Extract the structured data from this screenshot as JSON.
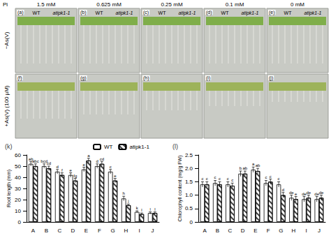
{
  "figure": {
    "header_label": "Pi",
    "columns": [
      "1.5 mM",
      "0.625 mM",
      "0.25 mM",
      "0.1 mM",
      "0 mM"
    ],
    "rows": [
      "−As(V)",
      "+As(V) (100 µM)"
    ],
    "genotypes": [
      "WT",
      "atipk1-1"
    ],
    "panels": [
      "(a)",
      "(b)",
      "(c)",
      "(d)",
      "(e)",
      "(f)",
      "(g)",
      "(h)",
      "(i)",
      "(j)"
    ]
  },
  "chart_data": [
    {
      "type": "bar",
      "title": "(k)",
      "y_label": "Root length (mm)",
      "categories": [
        "A",
        "B",
        "C",
        "D",
        "E",
        "F",
        "G",
        "H",
        "I",
        "J"
      ],
      "series": [
        {
          "name": "WT",
          "color": "#ffffff",
          "values": [
            52,
            50,
            45,
            42,
            47,
            50,
            45,
            21,
            9,
            8
          ],
          "errors": [
            2,
            2,
            2,
            2,
            2,
            2,
            2,
            2,
            1,
            1
          ],
          "letters": [
            "ab",
            "bcd",
            "d",
            "e",
            "e",
            "d",
            "c",
            "h",
            "k",
            "l"
          ]
        },
        {
          "name": "atipk1-1",
          "color": "#ffffff",
          "values": [
            50,
            48,
            42,
            37,
            55,
            52,
            37,
            15,
            7,
            8
          ],
          "errors": [
            2,
            2,
            2,
            2,
            2,
            2,
            2,
            1,
            1,
            1
          ],
          "letters": [
            "abc",
            "cd",
            "f",
            "fg",
            "a",
            "cd",
            "e",
            "j",
            "l",
            "l"
          ]
        }
      ],
      "ylim": [
        0,
        60
      ],
      "yticks": [
        0,
        10,
        20,
        30,
        40,
        50,
        60
      ],
      "legend": "top",
      "grid": false
    },
    {
      "type": "bar",
      "title": "(l)",
      "y_label": "Chlorophyll content (mg/g FW)",
      "categories": [
        "A",
        "B",
        "C",
        "D",
        "E",
        "F",
        "G",
        "H",
        "I",
        "J"
      ],
      "series": [
        {
          "name": "WT",
          "color": "#ffffff",
          "values": [
            1.4,
            1.45,
            1.4,
            1.8,
            1.95,
            1.45,
            1.4,
            0.9,
            0.85,
            0.85
          ],
          "errors": [
            0.1,
            0.1,
            0.1,
            0.1,
            0.1,
            0.1,
            0.1,
            0.1,
            0.1,
            0.1
          ],
          "letters": [
            "c",
            "c",
            "c",
            "b",
            "a",
            "c",
            "c",
            "de",
            "de",
            "de"
          ]
        },
        {
          "name": "atipk1-1",
          "color": "#ffffff",
          "values": [
            1.4,
            1.4,
            1.35,
            1.8,
            1.9,
            1.5,
            1.0,
            0.85,
            0.9,
            0.9
          ],
          "errors": [
            0.1,
            0.1,
            0.1,
            0.1,
            0.1,
            0.1,
            0.1,
            0.1,
            0.1,
            0.1
          ],
          "letters": [
            "c",
            "c",
            "c",
            "ab",
            "ab",
            "c",
            "d",
            "e",
            "de",
            "de"
          ]
        }
      ],
      "ylim": [
        0,
        2.5
      ],
      "yticks": [
        0,
        {
          "value": 0.5,
          "label": "0.5"
        },
        {
          "value": 1,
          "label": "1.0"
        },
        {
          "value": 1.5,
          "label": "1.5"
        },
        {
          "value": 2,
          "label": "2.0"
        },
        {
          "value": 2.5,
          "label": "2.5"
        }
      ],
      "grid": false
    }
  ]
}
